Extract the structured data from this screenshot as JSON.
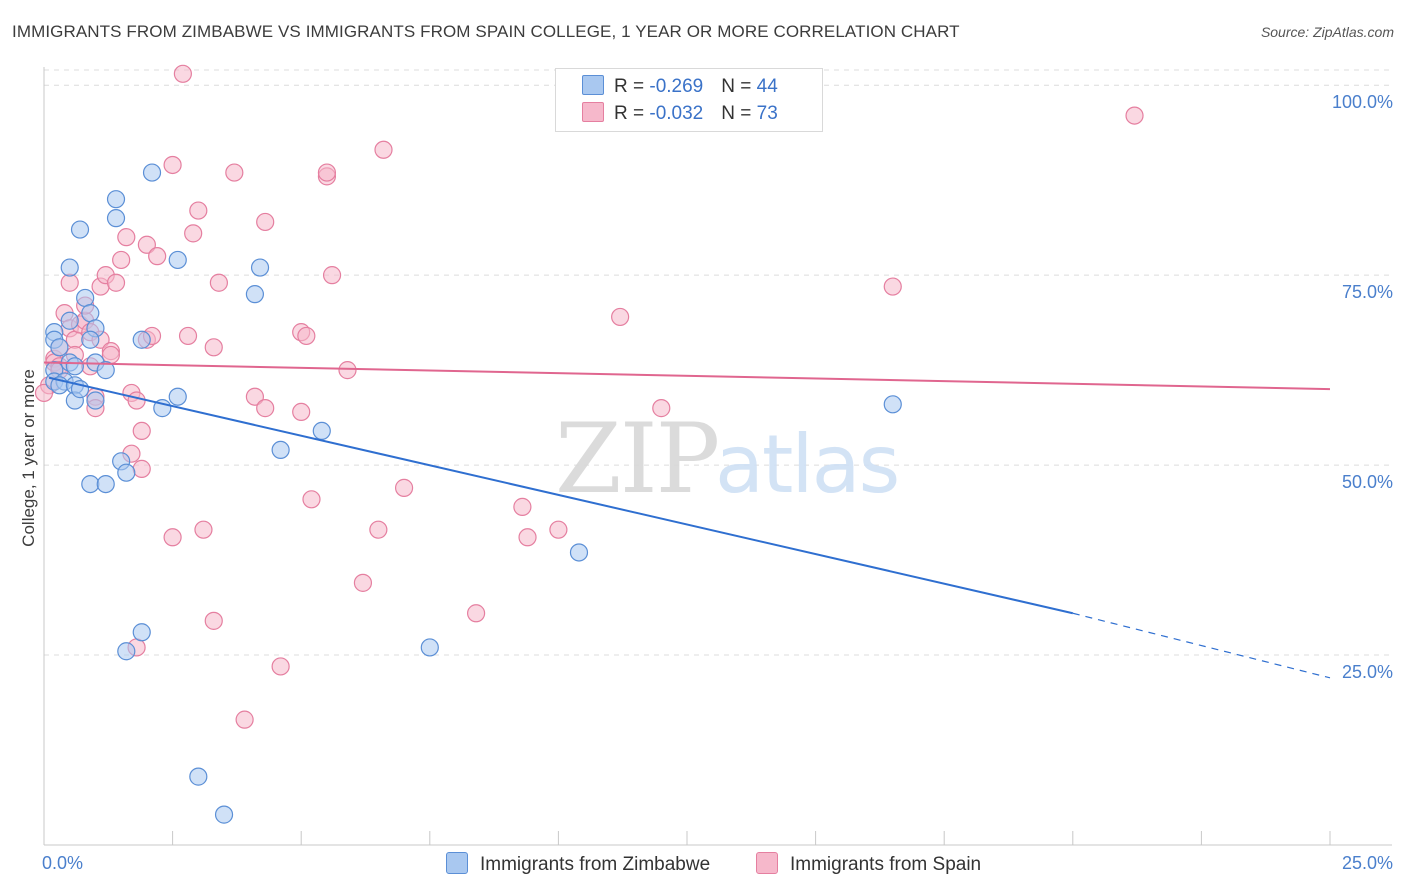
{
  "title": "IMMIGRANTS FROM ZIMBABWE VS IMMIGRANTS FROM SPAIN COLLEGE, 1 YEAR OR MORE CORRELATION CHART",
  "source": "Source: ZipAtlas.com",
  "watermark": {
    "zip": "ZIP",
    "atlas": "atlas"
  },
  "colors": {
    "zimbabwe_fill": "#a9c8f0",
    "zimbabwe_stroke": "#5b8fd6",
    "zimbabwe_line": "#2f6fd0",
    "spain_fill": "#f6b8cb",
    "spain_stroke": "#e57fa0",
    "spain_line": "#e0668f",
    "grid": "#dcdcdc",
    "axis_text": "#4a7fcc"
  },
  "legend": {
    "rows": [
      {
        "r_label": "R = ",
        "r_value": "-0.269",
        "n_label": "N = ",
        "n_value": "44"
      },
      {
        "r_label": "R = ",
        "r_value": "-0.032",
        "n_label": "N = ",
        "n_value": "73"
      }
    ]
  },
  "bottom_legend": {
    "zimbabwe": "Immigrants from Zimbabwe",
    "spain": "Immigrants from Spain"
  },
  "chart_data": {
    "type": "scatter",
    "xlabel": "",
    "ylabel": "College, 1 year or more",
    "xlim": [
      0,
      25
    ],
    "ylim": [
      0,
      102
    ],
    "x_tick_labels": {
      "left": "0.0%",
      "right": "25.0%"
    },
    "y_ticks": [
      {
        "value": 25,
        "label": "25.0%"
      },
      {
        "value": 50,
        "label": "50.0%"
      },
      {
        "value": 75,
        "label": "75.0%"
      },
      {
        "value": 100,
        "label": "100.0%"
      }
    ],
    "series": [
      {
        "name": "Immigrants from Zimbabwe",
        "r": -0.269,
        "n": 44,
        "trend": {
          "x0": 0.1,
          "y0": 61.5,
          "x1": 20.0,
          "y1": 30.5,
          "dash_to_x": 25.0,
          "dash_to_y": 22.0
        },
        "points": [
          [
            0.2,
            67.5
          ],
          [
            0.2,
            66.5
          ],
          [
            0.3,
            65.5
          ],
          [
            0.2,
            62.5
          ],
          [
            0.2,
            61.0
          ],
          [
            0.4,
            61.0
          ],
          [
            0.3,
            60.5
          ],
          [
            0.5,
            69.0
          ],
          [
            0.5,
            63.5
          ],
          [
            0.6,
            63.0
          ],
          [
            0.6,
            60.5
          ],
          [
            0.6,
            58.5
          ],
          [
            0.7,
            60.0
          ],
          [
            0.8,
            72.0
          ],
          [
            0.9,
            70.0
          ],
          [
            1.0,
            68.0
          ],
          [
            1.0,
            63.5
          ],
          [
            1.0,
            58.5
          ],
          [
            1.2,
            62.5
          ],
          [
            0.9,
            47.5
          ],
          [
            1.2,
            47.5
          ],
          [
            0.5,
            76.0
          ],
          [
            0.7,
            81.0
          ],
          [
            1.4,
            82.5
          ],
          [
            1.4,
            85.0
          ],
          [
            1.5,
            50.5
          ],
          [
            1.6,
            49.0
          ],
          [
            1.9,
            66.5
          ],
          [
            2.1,
            88.5
          ],
          [
            2.3,
            57.5
          ],
          [
            2.6,
            59.0
          ],
          [
            2.6,
            77.0
          ],
          [
            1.6,
            25.5
          ],
          [
            1.9,
            28.0
          ],
          [
            3.0,
            9.0
          ],
          [
            3.5,
            4.0
          ],
          [
            4.1,
            72.5
          ],
          [
            4.2,
            76.0
          ],
          [
            4.6,
            52.0
          ],
          [
            5.4,
            54.5
          ],
          [
            7.5,
            26.0
          ],
          [
            10.4,
            38.5
          ],
          [
            16.5,
            58.0
          ],
          [
            0.9,
            66.5
          ]
        ]
      },
      {
        "name": "Immigrants from Spain",
        "r": -0.032,
        "n": 73,
        "trend": {
          "x0": 0.0,
          "y0": 63.5,
          "x1": 25.0,
          "y1": 60.0
        },
        "points": [
          [
            0.1,
            60.5
          ],
          [
            0.2,
            64.0
          ],
          [
            0.2,
            63.5
          ],
          [
            0.3,
            65.5
          ],
          [
            0.3,
            63.0
          ],
          [
            0.3,
            62.5
          ],
          [
            0.4,
            70.0
          ],
          [
            0.5,
            68.0
          ],
          [
            0.5,
            74.0
          ],
          [
            0.6,
            66.5
          ],
          [
            0.6,
            64.5
          ],
          [
            0.7,
            68.5
          ],
          [
            0.8,
            69.0
          ],
          [
            0.8,
            71.0
          ],
          [
            0.9,
            67.5
          ],
          [
            0.9,
            63.0
          ],
          [
            1.0,
            59.0
          ],
          [
            1.0,
            57.5
          ],
          [
            1.1,
            66.5
          ],
          [
            1.1,
            73.5
          ],
          [
            1.2,
            75.0
          ],
          [
            1.3,
            65.0
          ],
          [
            1.3,
            64.5
          ],
          [
            1.4,
            74.0
          ],
          [
            1.5,
            77.0
          ],
          [
            1.6,
            80.0
          ],
          [
            1.7,
            59.5
          ],
          [
            1.7,
            51.5
          ],
          [
            1.8,
            58.5
          ],
          [
            1.9,
            54.5
          ],
          [
            1.9,
            49.5
          ],
          [
            2.0,
            79.0
          ],
          [
            2.0,
            66.5
          ],
          [
            2.1,
            67.0
          ],
          [
            2.2,
            77.5
          ],
          [
            2.5,
            40.5
          ],
          [
            2.5,
            89.5
          ],
          [
            2.8,
            67.0
          ],
          [
            2.9,
            80.5
          ],
          [
            3.0,
            83.5
          ],
          [
            3.1,
            41.5
          ],
          [
            3.3,
            29.5
          ],
          [
            3.3,
            65.5
          ],
          [
            3.4,
            74.0
          ],
          [
            3.7,
            88.5
          ],
          [
            3.9,
            16.5
          ],
          [
            4.1,
            59.0
          ],
          [
            4.3,
            82.0
          ],
          [
            4.3,
            57.5
          ],
          [
            4.6,
            23.5
          ],
          [
            5.0,
            57.0
          ],
          [
            5.0,
            67.5
          ],
          [
            5.1,
            67.0
          ],
          [
            5.2,
            45.5
          ],
          [
            5.5,
            88.0
          ],
          [
            5.5,
            88.5
          ],
          [
            5.6,
            75.0
          ],
          [
            5.9,
            62.5
          ],
          [
            6.2,
            34.5
          ],
          [
            6.5,
            41.5
          ],
          [
            6.6,
            91.5
          ],
          [
            7.0,
            47.0
          ],
          [
            8.4,
            30.5
          ],
          [
            9.3,
            44.5
          ],
          [
            9.4,
            40.5
          ],
          [
            10.0,
            41.5
          ],
          [
            11.2,
            69.5
          ],
          [
            12.0,
            57.5
          ],
          [
            16.5,
            73.5
          ],
          [
            21.2,
            96.0
          ],
          [
            2.7,
            101.5
          ],
          [
            0.0,
            59.5
          ],
          [
            1.8,
            26.0
          ]
        ]
      }
    ]
  }
}
